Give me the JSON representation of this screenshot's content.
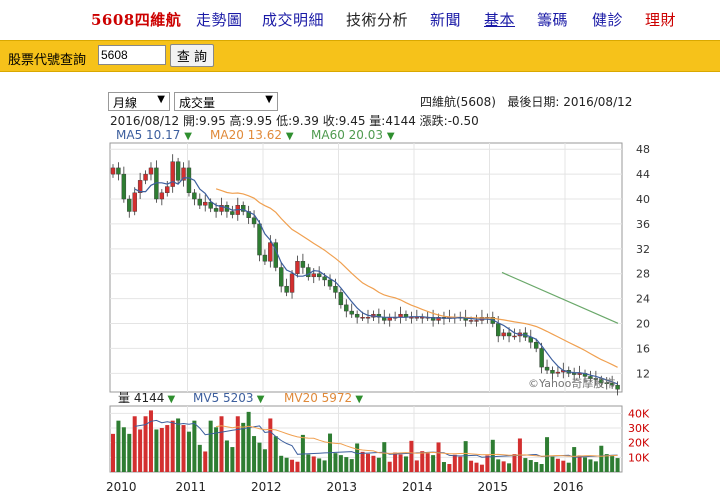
{
  "nav": {
    "brand": "5608四維航",
    "items": [
      "走勢圖",
      "成交明細",
      "技術分析",
      "新聞",
      "基本",
      "籌碼",
      "健診",
      "理財"
    ]
  },
  "search": {
    "label": "股票代號查詢",
    "value": "5608",
    "button": "查 詢"
  },
  "selects": {
    "period": "月線",
    "indicator": "成交量"
  },
  "stock": {
    "name": "四維航(5608)",
    "last_date_label": "最後日期: 2016/08/12"
  },
  "quote": "2016/08/12  開:9.95  高:9.95  低:9.39  收:9.45  量:4144  漲跌:-0.50",
  "legend": {
    "ma5": "MA5 10.17",
    "ma20": "MA20 13.62",
    "ma60": "MA60 20.03",
    "vol": "量 4144",
    "mv5": "MV5 5203",
    "mv20": "MV20 5972"
  },
  "watermark": "©Yahoo奇摩股市",
  "colors": {
    "up": "#d32f2f",
    "down": "#2e7d32",
    "ma5": "#3d5f9e",
    "ma20": "#f0a050",
    "ma60": "#6aa86a",
    "accent": "#f6c21a"
  },
  "chart_data": {
    "type": "candlestick",
    "price_axis_ticks": [
      "12",
      "16",
      "20",
      "24",
      "28",
      "32",
      "36",
      "40",
      "44",
      "48"
    ],
    "price_range": [
      9,
      49
    ],
    "volume_axis_ticks": [
      "10K",
      "20K",
      "30K",
      "40K"
    ],
    "volume_range": [
      0,
      45000
    ],
    "x_axis_labels": [
      "2010",
      "2011",
      "2012",
      "2013",
      "2014",
      "2015",
      "2016"
    ],
    "ma60_segment": {
      "start_close": 28.2,
      "end_close": 20.03
    }
  }
}
